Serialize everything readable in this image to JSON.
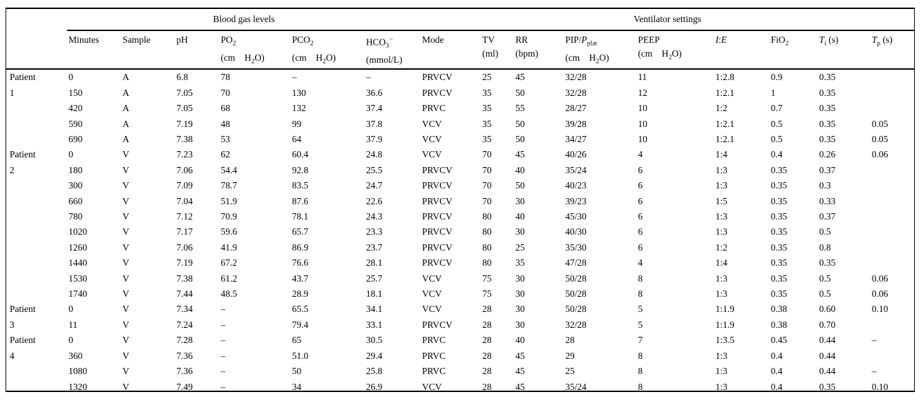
{
  "table": {
    "spanner_blood_gas": "Blood gas levels",
    "spanner_ventilator": "Ventilator settings",
    "columns": [
      {
        "key": "patient",
        "label": ""
      },
      {
        "key": "minutes",
        "label": "Minutes"
      },
      {
        "key": "sample",
        "label": "Sample"
      },
      {
        "key": "ph",
        "label": "pH"
      },
      {
        "key": "po2",
        "label": "PO<sub>2</sub><br>(cm&nbsp;&nbsp;&nbsp;&nbsp;H<sub>2</sub>O)"
      },
      {
        "key": "pco2",
        "label": "PCO<sub>2</sub><br>(cm&nbsp;&nbsp;&nbsp;&nbsp;H<sub>2</sub>O)"
      },
      {
        "key": "hco3",
        "label": "HCO<sub>3</sub><sup>&#8722;</sup><br>(mmol/L)"
      },
      {
        "key": "mode",
        "label": "Mode"
      },
      {
        "key": "tv",
        "label": "TV<br>(ml)"
      },
      {
        "key": "rr",
        "label": "RR<br>(bpm)"
      },
      {
        "key": "pip",
        "label": "PIP/<i>P</i><sub>plat</sub><br>(cm&nbsp;&nbsp;&nbsp;&nbsp;H<sub>2</sub>O)"
      },
      {
        "key": "peep",
        "label": "PEEP<br>(cm&nbsp;&nbsp;&nbsp;&nbsp;H<sub>2</sub>O)"
      },
      {
        "key": "ie",
        "label": "<i>I</i>:<i>E</i>"
      },
      {
        "key": "fio2",
        "label": "FiO<sub>2</sub>"
      },
      {
        "key": "ti",
        "label": "<i>T</i><sub>i</sub> (s)"
      },
      {
        "key": "tp",
        "label": "<i>T</i><sub>p</sub> (s)"
      }
    ],
    "groups": [
      {
        "patient": [
          "Patient",
          "1"
        ],
        "rows": [
          [
            "0",
            "A",
            "6.8",
            "78",
            "–",
            "–",
            "PRVCV",
            "25",
            "45",
            "32/28",
            "11",
            "1:2.8",
            "0.9",
            "0.35",
            ""
          ],
          [
            "150",
            "A",
            "7.05",
            "70",
            "130",
            "36.6",
            "PRVCV",
            "35",
            "50",
            "32/28",
            "12",
            "1:2.1",
            "1",
            "0.35",
            ""
          ],
          [
            "420",
            "A",
            "7.05",
            "68",
            "132",
            "37.4",
            "PRVC",
            "35",
            "55",
            "28/27",
            "10",
            "1:2",
            "0.7",
            "0.35",
            ""
          ],
          [
            "590",
            "A",
            "7.19",
            "48",
            "99",
            "37.8",
            "VCV",
            "35",
            "50",
            "39/28",
            "10",
            "1:2.1",
            "0.5",
            "0.35",
            "0.05"
          ],
          [
            "690",
            "A",
            "7.38",
            "53",
            "64",
            "37.9",
            "VCV",
            "35",
            "50",
            "34/27",
            "10",
            "1:2.1",
            "0.5",
            "0.35",
            "0.05"
          ]
        ]
      },
      {
        "patient": [
          "Patient",
          "2"
        ],
        "rows": [
          [
            "0",
            "V",
            "7.23",
            "62",
            "60.4",
            "24.8",
            "VCV",
            "70",
            "45",
            "40/26",
            "4",
            "1:4",
            "0.4",
            "0.26",
            "0.06"
          ],
          [
            "180",
            "V",
            "7.06",
            "54.4",
            "92.8",
            "25.5",
            "PRVCV",
            "70",
            "40",
            "35/24",
            "6",
            "1:3",
            "0.35",
            "0.37",
            ""
          ],
          [
            "300",
            "V",
            "7.09",
            "78.7",
            "83.5",
            "24.7",
            "PRVCV",
            "70",
            "50",
            "40/23",
            "6",
            "1:3",
            "0.35",
            "0.3",
            ""
          ],
          [
            "660",
            "V",
            "7.04",
            "51.9",
            "87.6",
            "22.6",
            "PRVCV",
            "70",
            "30",
            "39/23",
            "6",
            "1:5",
            "0.35",
            "0.33",
            ""
          ],
          [
            "780",
            "V",
            "7.12",
            "70.9",
            "78.1",
            "24.3",
            "PRVCV",
            "80",
            "40",
            "45/30",
            "6",
            "1:3",
            "0.35",
            "0.37",
            ""
          ],
          [
            "1020",
            "V",
            "7.17",
            "59.6",
            "65.7",
            "23.3",
            "PRVCV",
            "80",
            "30",
            "40/30",
            "6",
            "1:3",
            "0.35",
            "0.5",
            ""
          ],
          [
            "1260",
            "V",
            "7.06",
            "41.9",
            "86.9",
            "23.7",
            "PRVCV",
            "80",
            "25",
            "35/30",
            "6",
            "1:2",
            "0.35",
            "0.8",
            ""
          ],
          [
            "1440",
            "V",
            "7.19",
            "67.2",
            "76.6",
            "28.1",
            "PRVCV",
            "80",
            "35",
            "47/28",
            "4",
            "1:4",
            "0.35",
            "0.35",
            ""
          ],
          [
            "1530",
            "V",
            "7.38",
            "61.2",
            "43.7",
            "25.7",
            "VCV",
            "75",
            "30",
            "50/28",
            "8",
            "1:3",
            "0.35",
            "0.5",
            "0.06"
          ],
          [
            "1740",
            "V",
            "7.44",
            "48.5",
            "28.9",
            "18.1",
            "VCV",
            "75",
            "30",
            "50/28",
            "8",
            "1:3",
            "0.35",
            "0.5",
            "0.06"
          ]
        ]
      },
      {
        "patient": [
          "Patient",
          "3"
        ],
        "rows": [
          [
            "0",
            "V",
            "7.34",
            "–",
            "65.5",
            "34.1",
            "VCV",
            "28",
            "30",
            "50/28",
            "5",
            "1:1.9",
            "0.38",
            "0.60",
            "0.10"
          ],
          [
            "11",
            "V",
            "7.24",
            "–",
            "79.4",
            "33.1",
            "PRVCV",
            "28",
            "30",
            "32/28",
            "5",
            "1:1.9",
            "0.38",
            "0.70",
            ""
          ]
        ]
      },
      {
        "patient": [
          "Patient",
          "4"
        ],
        "rows": [
          [
            "0",
            "V",
            "7.28",
            "–",
            "65",
            "30.5",
            "PRVC",
            "28",
            "40",
            "28",
            "7",
            "1:3.5",
            "0.45",
            "0.44",
            "–"
          ],
          [
            "360",
            "V",
            "7.36",
            "–",
            "51.0",
            "29.4",
            "PRVC",
            "28",
            "45",
            "29",
            "8",
            "1:3",
            "0.4",
            "0.44",
            ""
          ],
          [
            "1080",
            "V",
            "7.36",
            "–",
            "50",
            "25.8",
            "PRVC",
            "28",
            "45",
            "25",
            "8",
            "1:3",
            "0.4",
            "0.44",
            "–"
          ],
          [
            "1320",
            "V",
            "7.49",
            "–",
            "34",
            "26.9",
            "VCV",
            "28",
            "45",
            "35/24",
            "8",
            "1:3",
            "0.4",
            "0.35",
            "0.10"
          ]
        ]
      }
    ]
  }
}
